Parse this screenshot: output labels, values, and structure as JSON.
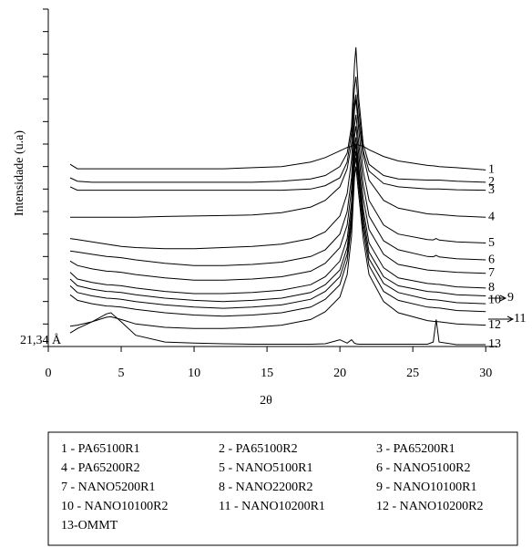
{
  "chart_data": {
    "type": "line",
    "x_label": "2θ",
    "y_label": "Intensidade (u.a)",
    "annotation": "21,34 Å",
    "xlim": [
      0,
      30.8
    ],
    "xticks": [
      0,
      5,
      10,
      15,
      20,
      25,
      30
    ],
    "ylim": [
      0,
      15
    ],
    "yticks": [
      0,
      1,
      2,
      3,
      4,
      5,
      6,
      7,
      8,
      9,
      10,
      11,
      12,
      13,
      14,
      15
    ],
    "x": [
      1.5,
      2,
      3,
      4,
      4.3,
      5,
      6,
      8,
      10,
      12,
      14,
      16,
      18,
      19,
      20,
      20.5,
      20.8,
      21,
      21.1,
      21.3,
      21.6,
      22,
      23,
      24,
      26,
      26.4,
      26.6,
      26.8,
      28,
      30
    ],
    "series": [
      {
        "name": "1 - PA65100R1",
        "label": "1",
        "color": "#000000",
        "values": [
          8.1,
          7.9,
          7.9,
          7.9,
          7.9,
          7.9,
          7.9,
          7.9,
          7.9,
          7.9,
          7.95,
          8.0,
          8.2,
          8.4,
          8.7,
          8.85,
          8.9,
          9.0,
          9.0,
          8.95,
          8.9,
          8.75,
          8.45,
          8.25,
          8.05,
          8.03,
          8.02,
          8.0,
          7.95,
          7.85
        ]
      },
      {
        "name": "2 - PA65100R2",
        "label": "2",
        "color": "#000000",
        "values": [
          7.5,
          7.35,
          7.3,
          7.3,
          7.3,
          7.3,
          7.3,
          7.3,
          7.3,
          7.3,
          7.3,
          7.35,
          7.45,
          7.6,
          8.0,
          8.6,
          9.8,
          12.5,
          13.3,
          11.0,
          9.0,
          8.1,
          7.6,
          7.45,
          7.4,
          7.4,
          7.4,
          7.4,
          7.35,
          7.3
        ]
      },
      {
        "name": "3 - PA65200R1",
        "label": "3",
        "color": "#000000",
        "values": [
          7.1,
          6.95,
          6.95,
          6.95,
          6.95,
          6.95,
          6.95,
          6.95,
          6.95,
          6.95,
          6.95,
          6.95,
          7.0,
          7.15,
          7.5,
          8.2,
          9.5,
          11.5,
          12.0,
          10.5,
          8.7,
          7.8,
          7.25,
          7.1,
          7.0,
          7.0,
          7.0,
          7.0,
          6.97,
          6.95
        ]
      },
      {
        "name": "4 - PA65200R2",
        "label": "4",
        "color": "#000000",
        "values": [
          5.75,
          5.75,
          5.75,
          5.75,
          5.75,
          5.75,
          5.75,
          5.78,
          5.8,
          5.82,
          5.85,
          5.95,
          6.2,
          6.5,
          7.1,
          7.9,
          9.0,
          10.8,
          11.2,
          10.0,
          8.5,
          7.4,
          6.5,
          6.15,
          5.9,
          5.88,
          5.88,
          5.87,
          5.8,
          5.75
        ]
      },
      {
        "name": "5 - NANO5100R1",
        "label": "5",
        "color": "#000000",
        "values": [
          4.8,
          4.75,
          4.65,
          4.55,
          4.52,
          4.45,
          4.4,
          4.35,
          4.35,
          4.4,
          4.45,
          4.55,
          4.8,
          5.1,
          5.8,
          6.8,
          8.3,
          10.5,
          11.0,
          9.6,
          7.8,
          6.5,
          5.4,
          5.0,
          4.75,
          4.74,
          4.8,
          4.73,
          4.65,
          4.6
        ]
      },
      {
        "name": "6 - NANO5100R2",
        "label": "6",
        "color": "#000000",
        "values": [
          4.25,
          4.2,
          4.1,
          4.0,
          3.99,
          3.95,
          3.85,
          3.7,
          3.6,
          3.6,
          3.65,
          3.75,
          4.0,
          4.3,
          5.0,
          6.0,
          7.5,
          9.8,
          10.3,
          9.0,
          7.2,
          5.8,
          4.7,
          4.3,
          4.0,
          3.99,
          4.05,
          3.98,
          3.9,
          3.85
        ]
      },
      {
        "name": "7 - NANO5200R1",
        "label": "7",
        "color": "#000000",
        "values": [
          3.8,
          3.6,
          3.45,
          3.35,
          3.34,
          3.3,
          3.2,
          3.05,
          2.95,
          2.95,
          3.0,
          3.1,
          3.35,
          3.7,
          4.4,
          5.4,
          7.0,
          9.3,
          9.8,
          8.5,
          6.6,
          5.2,
          4.1,
          3.65,
          3.4,
          3.38,
          3.37,
          3.36,
          3.3,
          3.25
        ]
      },
      {
        "name": "8 - NANO2200R2",
        "label": "8",
        "color": "#000000",
        "values": [
          3.3,
          3.0,
          2.85,
          2.75,
          2.74,
          2.7,
          2.6,
          2.45,
          2.35,
          2.35,
          2.4,
          2.5,
          2.75,
          3.1,
          3.8,
          4.8,
          6.4,
          8.8,
          9.3,
          8.0,
          6.1,
          4.6,
          3.5,
          3.05,
          2.8,
          2.78,
          2.77,
          2.76,
          2.65,
          2.6
        ]
      },
      {
        "name": "9 - NANO10100R1",
        "label": "9",
        "color": "#000000",
        "values": [
          3.0,
          2.7,
          2.55,
          2.45,
          2.44,
          2.4,
          2.3,
          2.15,
          2.05,
          2.0,
          2.05,
          2.15,
          2.4,
          2.75,
          3.4,
          4.4,
          6.0,
          8.5,
          9.0,
          7.7,
          5.8,
          4.2,
          3.1,
          2.7,
          2.45,
          2.43,
          2.42,
          2.41,
          2.3,
          2.25
        ]
      },
      {
        "name": "10 - NANO10100R2",
        "label": "10",
        "color": "#000000",
        "values": [
          2.7,
          2.4,
          2.25,
          2.15,
          2.14,
          2.1,
          2.0,
          1.85,
          1.75,
          1.7,
          1.75,
          1.85,
          2.1,
          2.45,
          3.1,
          4.1,
          5.7,
          8.2,
          8.7,
          7.4,
          5.5,
          3.9,
          2.8,
          2.4,
          2.1,
          2.08,
          2.07,
          2.06,
          1.95,
          1.9
        ]
      },
      {
        "name": "11 - NANO10200R1",
        "label": "11",
        "color": "#000000",
        "values": [
          2.3,
          2.05,
          1.9,
          1.8,
          1.79,
          1.75,
          1.65,
          1.5,
          1.4,
          1.35,
          1.4,
          1.5,
          1.75,
          2.1,
          2.75,
          3.8,
          5.4,
          7.9,
          8.4,
          7.1,
          5.2,
          3.6,
          2.45,
          2.05,
          1.75,
          1.73,
          1.72,
          1.71,
          1.6,
          1.55
        ]
      },
      {
        "name": "12 - NANO10200R2",
        "label": "12",
        "color": "#000000",
        "values": [
          0.9,
          0.95,
          1.1,
          1.3,
          1.32,
          1.2,
          1.0,
          0.85,
          0.8,
          0.8,
          0.85,
          0.95,
          1.2,
          1.55,
          2.2,
          3.2,
          4.9,
          7.5,
          8.0,
          6.7,
          4.8,
          3.2,
          2.0,
          1.5,
          1.15,
          1.12,
          1.11,
          1.1,
          1.0,
          0.95
        ]
      },
      {
        "name": "13-OMMT",
        "label": "13",
        "color": "#000000",
        "values": [
          0.6,
          0.8,
          1.1,
          1.45,
          1.5,
          1.1,
          0.5,
          0.2,
          0.15,
          0.12,
          0.1,
          0.1,
          0.1,
          0.12,
          0.3,
          0.15,
          0.3,
          0.15,
          0.12,
          0.1,
          0.1,
          0.1,
          0.1,
          0.1,
          0.1,
          0.2,
          1.2,
          0.2,
          0.08,
          0.08
        ]
      }
    ]
  }
}
